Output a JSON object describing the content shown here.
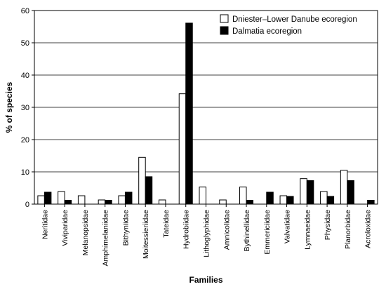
{
  "chart_data": {
    "type": "bar",
    "title": "",
    "xlabel": "Families",
    "ylabel": "% of species",
    "ylim": [
      0,
      60
    ],
    "yticks": [
      0,
      10,
      20,
      30,
      40,
      50,
      60
    ],
    "grid": "horizontal",
    "legend_position": "top-right",
    "categories": [
      "Neritidae",
      "Viviparidae",
      "Melanopsidae",
      "Amphimelaniidae",
      "Bithyniidae",
      "Moitessieriidae",
      "Tateidae",
      "Hydrobiidae",
      "Lithoglyphidae",
      "Amnicolidae",
      "Bythinellidae",
      "Emmericiidae",
      "Valvatidae",
      "Lymnaeidae",
      "Physidae",
      "Planorbidae",
      "Acroloxidae"
    ],
    "series": [
      {
        "name": "Dniester–Lower Danube ecoregion",
        "color": "#ffffff",
        "values": [
          2.6,
          3.9,
          2.6,
          1.3,
          2.6,
          14.5,
          1.3,
          34.2,
          5.3,
          1.3,
          5.3,
          0,
          2.6,
          7.9,
          3.9,
          10.5,
          0
        ]
      },
      {
        "name": "Dalmatia ecoregion",
        "color": "#000000",
        "values": [
          3.7,
          1.2,
          0,
          1.2,
          3.7,
          8.5,
          0,
          56.1,
          0,
          0,
          1.2,
          3.7,
          2.4,
          7.3,
          2.4,
          7.3,
          1.2
        ]
      }
    ]
  }
}
